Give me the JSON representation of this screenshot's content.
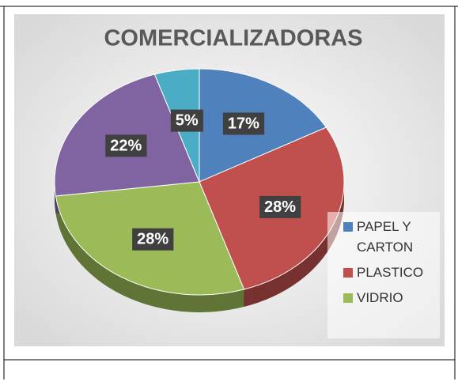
{
  "chart_data": {
    "type": "pie",
    "title": "COMERCIALIZADORAS",
    "categories": [
      "PAPEL Y CARTON",
      "PLASTICO",
      "VIDRIO",
      null,
      null
    ],
    "values": [
      17,
      28,
      28,
      22,
      5
    ],
    "value_labels": [
      "17%",
      "28%",
      "28%",
      "22%",
      "5%"
    ],
    "colors": [
      "#4f81bd",
      "#c0504d",
      "#9bbb59",
      "#8064a2",
      "#4bacc6"
    ],
    "legend": "right"
  }
}
